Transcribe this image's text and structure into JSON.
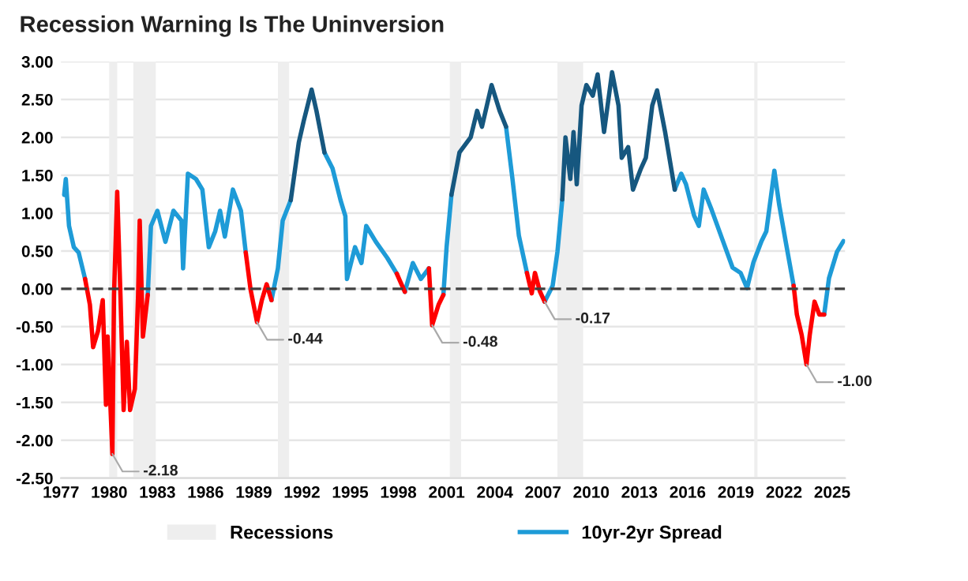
{
  "chart_data": {
    "type": "line",
    "title": "Recession Warning Is The Uninversion",
    "xlim": [
      1977,
      2025.8
    ],
    "xticks": [
      1977,
      1980,
      1983,
      1986,
      1989,
      1992,
      1995,
      1998,
      2001,
      2004,
      2007,
      2010,
      2013,
      2016,
      2019,
      2022,
      2025
    ],
    "ylim": [
      -2.5,
      3.0
    ],
    "yticks": [
      {
        "value": -2.5,
        "label": "-2.50"
      },
      {
        "value": -2.0,
        "label": "-2.00"
      },
      {
        "value": -1.5,
        "label": "-1.50"
      },
      {
        "value": -1.0,
        "label": "-1.00"
      },
      {
        "value": -0.5,
        "label": "-0.50"
      },
      {
        "value": 0,
        "label": "0.00"
      },
      {
        "value": 0.5,
        "label": "0.50"
      },
      {
        "value": 1.0,
        "label": "1.00"
      },
      {
        "value": 1.5,
        "label": "1.50"
      },
      {
        "value": 2.0,
        "label": "2.00"
      },
      {
        "value": 2.5,
        "label": "2.50"
      },
      {
        "value": 3.0,
        "label": "3.00"
      }
    ],
    "grid": "y",
    "legend": "bottom",
    "line_style": "solid",
    "marker": "none",
    "ref_lines": [
      {
        "axis": "y",
        "value": 0,
        "label": null,
        "color": "#404040",
        "line_style": "dashed"
      }
    ],
    "bands": [
      {
        "axis": "x",
        "from": 1980.0,
        "to": 1980.5,
        "label": "Recessions",
        "color": "#eeeeee"
      },
      {
        "axis": "x",
        "from": 1981.5,
        "to": 1982.9,
        "label": null,
        "color": "#eeeeee"
      },
      {
        "axis": "x",
        "from": 1990.5,
        "to": 1991.2,
        "label": null,
        "color": "#eeeeee"
      },
      {
        "axis": "x",
        "from": 2001.2,
        "to": 2001.9,
        "label": null,
        "color": "#eeeeee"
      },
      {
        "axis": "x",
        "from": 2007.9,
        "to": 2009.5,
        "label": null,
        "color": "#eeeeee"
      },
      {
        "axis": "x",
        "from": 2020.15,
        "to": 2020.35,
        "label": null,
        "color": "#eeeeee"
      }
    ],
    "annotations": [
      {
        "text": "-2.18",
        "x": 1980.2,
        "y": -2.18
      },
      {
        "text": "-0.44",
        "x": 1989.2,
        "y": -0.44
      },
      {
        "text": "-0.48",
        "x": 2000.1,
        "y": -0.48
      },
      {
        "text": "-0.17",
        "x": 2007.1,
        "y": -0.17
      },
      {
        "text": "-1.00",
        "x": 2023.4,
        "y": -1.0
      }
    ],
    "series": [
      {
        "name": "10yr-2yr Spread",
        "color": "#1e9bd7",
        "x": [
          1977.2,
          1977.3,
          1977.5,
          1977.8,
          1978.1,
          1978.5,
          1980,
          1982.4,
          1982.6,
          1983.0,
          1983.5,
          1984.0,
          1984.5,
          1984.6,
          1984.9,
          1985.4,
          1985.8,
          1986.2,
          1986.6,
          1986.9,
          1987.2,
          1987.7,
          1988.2,
          1988.5,
          1989,
          1990.1,
          1990.5,
          1990.8,
          1991.3,
          1992,
          1993.4,
          1993.9,
          1994.4,
          1994.7,
          1994.8,
          1995.3,
          1995.7,
          1996.0,
          1996.6,
          1997.3,
          1997.9,
          1998.2,
          1998.4,
          1998.9,
          1999.4,
          1999.9,
          2000.3,
          2000.8,
          2001.0,
          2001.3,
          2003,
          2004.7,
          2005.1,
          2005.5,
          2006.0,
          2006.5,
          2007.1,
          2007.6,
          2007.9,
          2008.2,
          2012,
          2015.2,
          2015.6,
          2015.9,
          2016.4,
          2016.7,
          2017.0,
          2017.5,
          2018.2,
          2018.8,
          2019.3,
          2019.7,
          2020.1,
          2020.6,
          2020.9,
          2021.4,
          2021.7,
          2022.1,
          2022.6,
          2023.5,
          2024.5,
          2024.8,
          2025.3,
          2025.7
        ],
        "values": [
          1.24,
          1.45,
          0.83,
          0.55,
          0.48,
          0.13,
          null,
          -0.08,
          0.83,
          1.03,
          0.62,
          1.03,
          0.9,
          0.27,
          1.52,
          1.45,
          1.31,
          0.55,
          0.76,
          1.03,
          0.69,
          1.31,
          1.03,
          0.48,
          null,
          -0.15,
          0.27,
          0.9,
          1.17,
          null,
          1.8,
          1.59,
          1.17,
          0.96,
          0.13,
          0.55,
          0.34,
          0.83,
          0.62,
          0.41,
          0.2,
          null,
          -0.04,
          0.34,
          0.13,
          0.27,
          null,
          -0.08,
          0.55,
          1.24,
          null,
          2.14,
          1.45,
          0.7,
          0.21,
          null,
          -0.17,
          0.04,
          0.49,
          1.18,
          null,
          1.31,
          1.52,
          1.38,
          0.97,
          0.83,
          1.31,
          1.04,
          0.63,
          0.28,
          0.21,
          0.01,
          0.35,
          0.63,
          0.76,
          1.56,
          1.11,
          0.63,
          0.04,
          null,
          -0.34,
          0.14,
          0.49,
          0.63
        ]
      },
      {
        "color": "#ff0000",
        "x": [
          1978.5,
          1978.8,
          1979.0,
          1979.3,
          1979.6,
          1979.8,
          1979.9,
          1980.2,
          1980.3,
          1980.5,
          1980.7,
          1980.9,
          1981.1,
          1981.3,
          1981.6,
          1981.8,
          1981.9,
          1982.1,
          1982.4,
          1985,
          1988.5,
          1988.8,
          1989.2,
          1989.5,
          1989.8,
          1990.1,
          1994,
          1997.9,
          1998.4,
          1999,
          1999.9,
          2000.1,
          2000.5,
          2000.8,
          2003,
          2006.0,
          2006.3,
          2006.5,
          2006.8,
          2007.1,
          2015,
          2022.6,
          2022.8,
          2023.1,
          2023.4,
          2023.6,
          2023.9,
          2024.2,
          2024.5
        ],
        "values": [
          0.13,
          -0.21,
          -0.77,
          -0.56,
          -0.15,
          -1.53,
          -0.63,
          -2.18,
          -0.08,
          1.28,
          -0.08,
          -1.6,
          -0.7,
          -1.6,
          -1.32,
          -0.08,
          0.9,
          -0.63,
          -0.08,
          null,
          0.48,
          -0.01,
          -0.44,
          -0.15,
          0.06,
          -0.15,
          null,
          0.2,
          -0.04,
          null,
          0.27,
          -0.48,
          -0.21,
          -0.08,
          null,
          0.21,
          -0.06,
          0.21,
          -0.03,
          -0.17,
          null,
          0.04,
          -0.34,
          -0.61,
          -1.0,
          -0.61,
          -0.17,
          -0.34,
          -0.34
        ]
      },
      {
        "color": "#16577f",
        "x": [
          1991.3,
          1991.8,
          1992.1,
          1992.6,
          1992.9,
          1993.4,
          1997,
          2001.3,
          2001.8,
          2002.5,
          2002.9,
          2003.2,
          2003.8,
          2004.3,
          2004.7,
          2006,
          2008.2,
          2008.4,
          2008.7,
          2008.9,
          2009.1,
          2009.4,
          2009.7,
          2010.1,
          2010.4,
          2010.8,
          2011.3,
          2011.7,
          2011.9,
          2012.3,
          2012.6,
          2013.1,
          2013.4,
          2013.8,
          2014.1,
          2014.6,
          2015.2
        ],
        "values": [
          1.17,
          1.93,
          2.21,
          2.63,
          2.35,
          1.8,
          null,
          1.24,
          1.8,
          2.0,
          2.35,
          2.14,
          2.69,
          2.35,
          2.14,
          null,
          1.18,
          2.0,
          1.45,
          2.07,
          1.38,
          2.42,
          2.69,
          2.55,
          2.83,
          2.07,
          2.86,
          2.42,
          1.73,
          1.87,
          1.31,
          1.59,
          1.73,
          2.42,
          2.62,
          2.07,
          1.31
        ]
      }
    ]
  }
}
